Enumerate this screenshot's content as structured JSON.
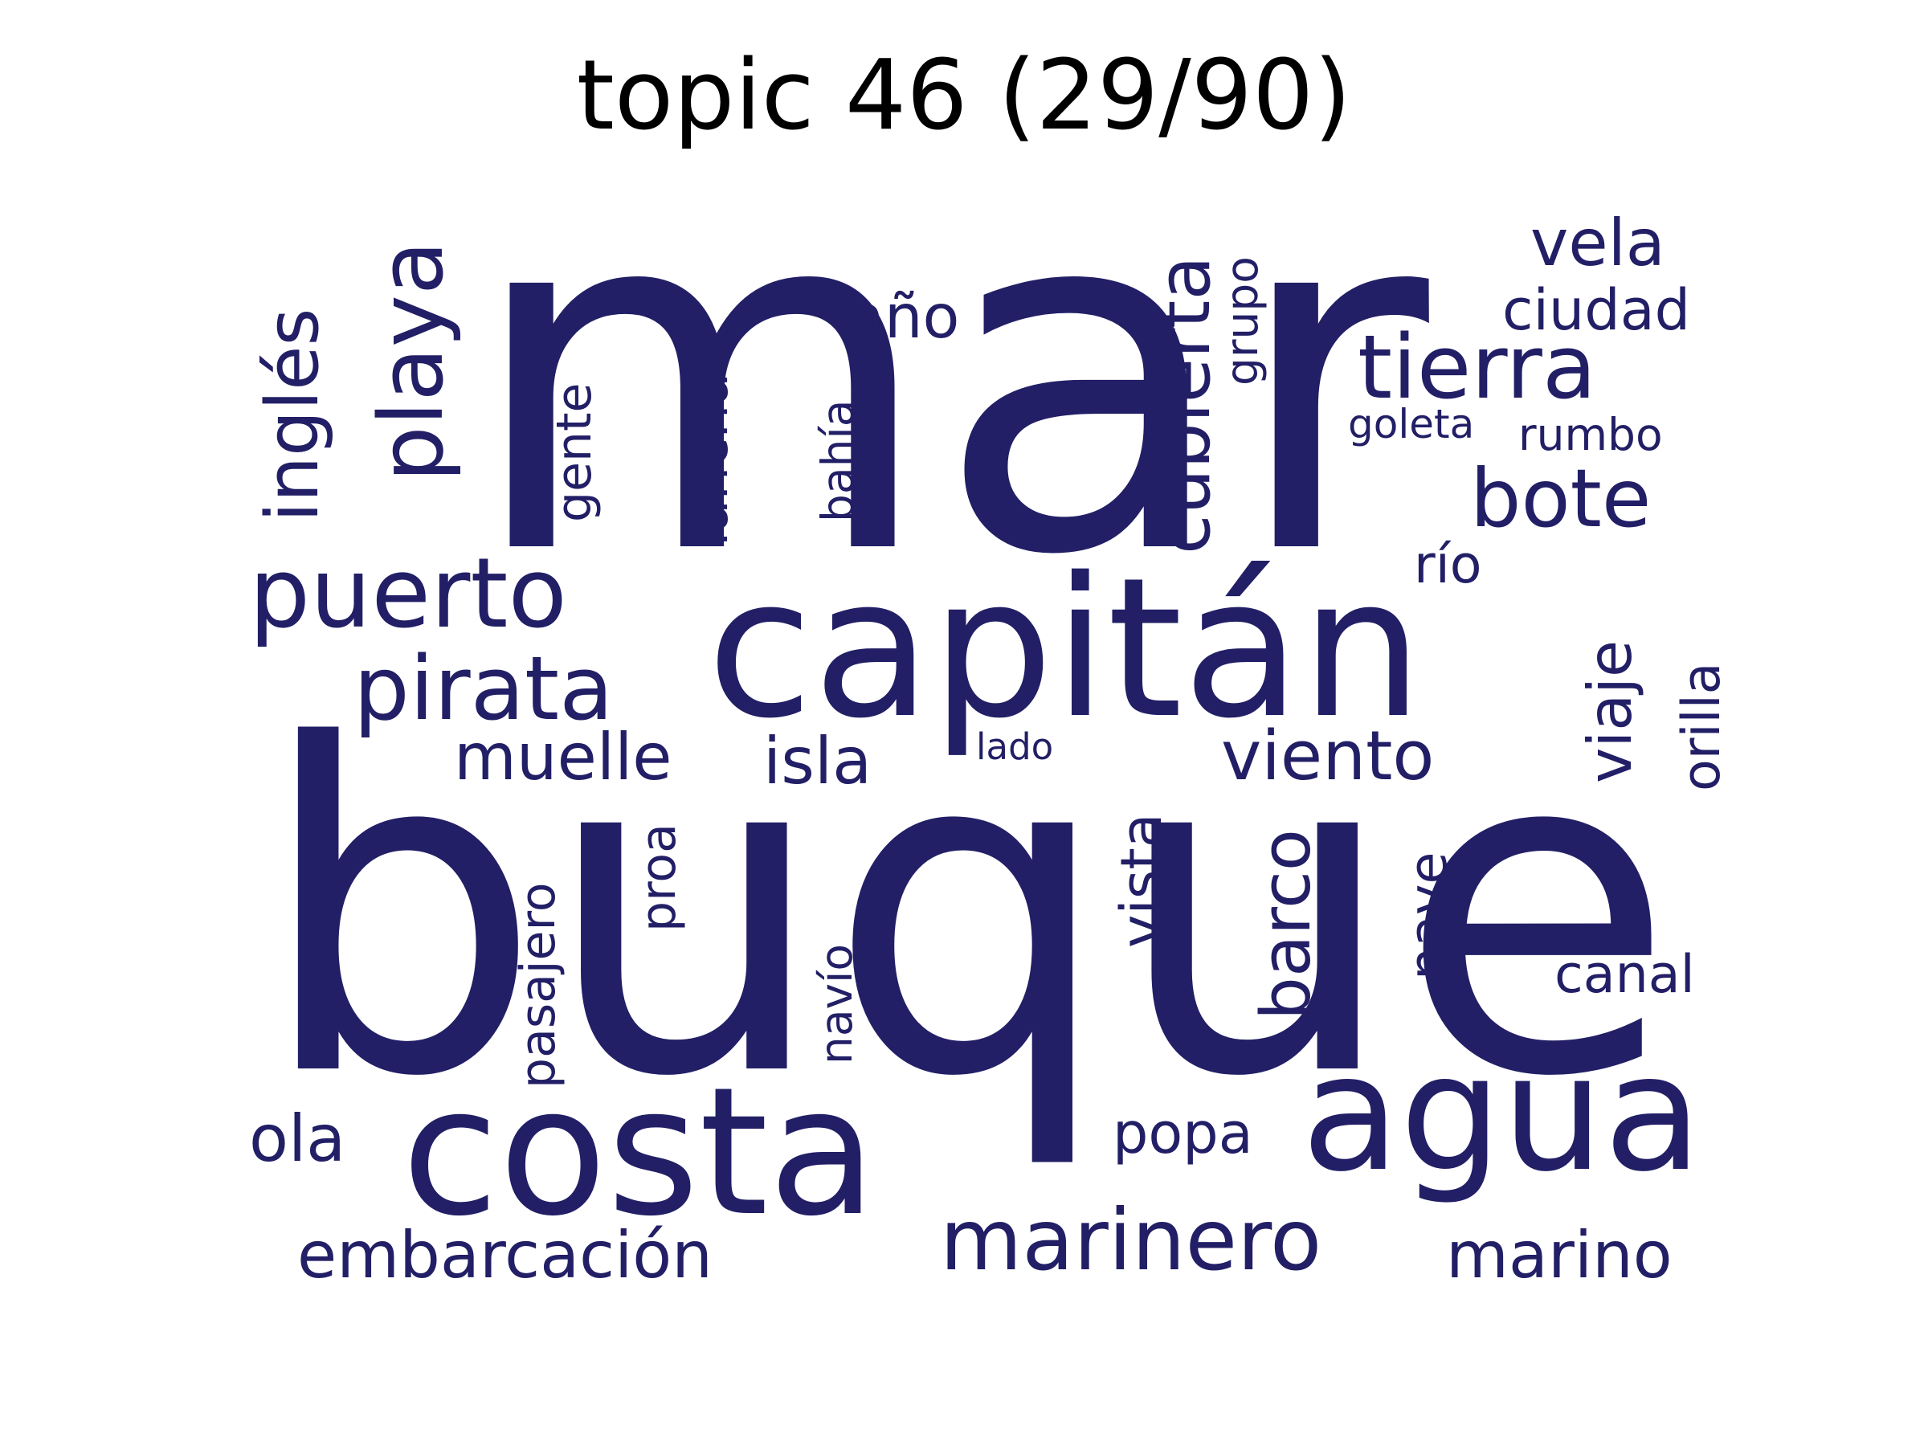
{
  "title": "topic 46 (29/90)",
  "word_color": "#221f66",
  "words": [
    {
      "text": "mar"
    },
    {
      "text": "buque"
    },
    {
      "text": "capitán"
    },
    {
      "text": "costa"
    },
    {
      "text": "agua"
    },
    {
      "text": "puerto"
    },
    {
      "text": "pirata"
    },
    {
      "text": "playa"
    },
    {
      "text": "inglés"
    },
    {
      "text": "tierra"
    },
    {
      "text": "bote"
    },
    {
      "text": "cubierta"
    },
    {
      "text": "marinero"
    },
    {
      "text": "embarcación"
    },
    {
      "text": "marino"
    },
    {
      "text": "muelle"
    },
    {
      "text": "isla"
    },
    {
      "text": "viento"
    },
    {
      "text": "vela"
    },
    {
      "text": "ciudad"
    },
    {
      "text": "año"
    },
    {
      "text": "lancha"
    },
    {
      "text": "gente"
    },
    {
      "text": "bahía"
    },
    {
      "text": "grupo"
    },
    {
      "text": "goleta"
    },
    {
      "text": "rumbo"
    },
    {
      "text": "río"
    },
    {
      "text": "viaje"
    },
    {
      "text": "orilla"
    },
    {
      "text": "lado"
    },
    {
      "text": "vista"
    },
    {
      "text": "barco"
    },
    {
      "text": "nave"
    },
    {
      "text": "canal"
    },
    {
      "text": "popa"
    },
    {
      "text": "ola"
    },
    {
      "text": "pasajero"
    },
    {
      "text": "proa"
    },
    {
      "text": "navío"
    }
  ]
}
